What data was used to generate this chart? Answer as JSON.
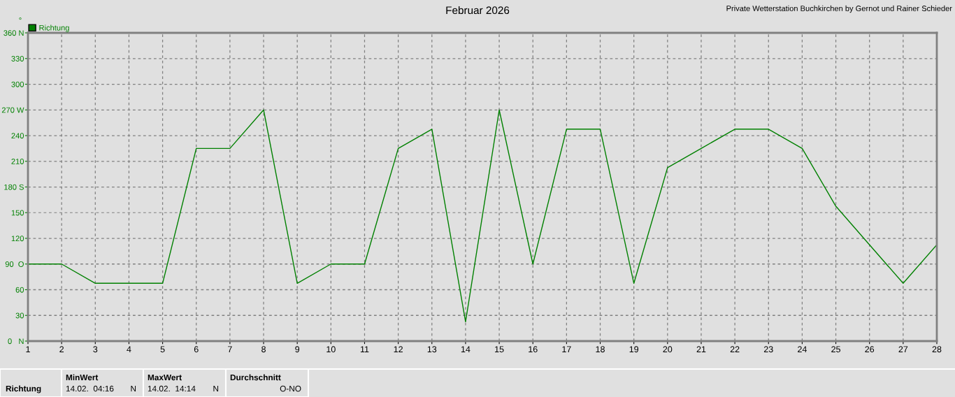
{
  "chart_data": {
    "type": "line",
    "title": "Februar 2026",
    "subtitle": "Private Wetterstation Buchkirchen by Gernot und Rainer Schieder",
    "ylabel": "°",
    "x": [
      1,
      2,
      3,
      4,
      5,
      6,
      7,
      8,
      9,
      10,
      11,
      12,
      13,
      14,
      15,
      16,
      17,
      18,
      19,
      20,
      21,
      22,
      23,
      24,
      25,
      26,
      27,
      28
    ],
    "series": [
      {
        "name": "Richtung",
        "color": "#008000",
        "values": [
          90,
          90,
          67.5,
          67.5,
          67.5,
          225,
          225,
          270,
          67.5,
          90,
          90,
          225,
          247.5,
          22.5,
          270,
          90,
          247.5,
          247.5,
          67.5,
          202.5,
          225,
          247.5,
          247.5,
          225,
          157.5,
          112.5,
          67.5,
          112.5
        ]
      }
    ],
    "xlim": [
      1,
      28
    ],
    "xticks": [
      1,
      2,
      3,
      4,
      5,
      6,
      7,
      8,
      9,
      10,
      11,
      12,
      13,
      14,
      15,
      16,
      17,
      18,
      19,
      20,
      21,
      22,
      23,
      24,
      25,
      26,
      27,
      28
    ],
    "ylim": [
      0,
      360
    ],
    "yticks": [
      {
        "value": 0,
        "label": "0   N"
      },
      30,
      60,
      {
        "value": 90,
        "label": "90  O"
      },
      120,
      150,
      {
        "value": 180,
        "label": "180 S"
      },
      210,
      240,
      {
        "value": 270,
        "label": "270 W"
      },
      300,
      330,
      {
        "value": 360,
        "label": "360 N"
      }
    ],
    "grid": true,
    "legend": "top left",
    "marker": "none",
    "line_style": "solid",
    "annotations": [
      "Richtung",
      "MinWert",
      "14.02.  04:16",
      "N",
      "MaxWert",
      "14.02.  14:14",
      "N",
      "Durchschnitt",
      "O-NO"
    ]
  }
}
